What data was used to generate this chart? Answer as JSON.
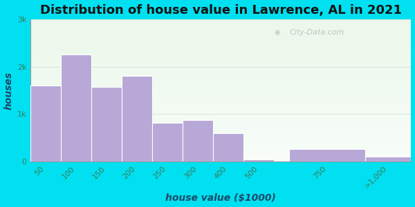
{
  "title": "Distribution of house value in Lawrence, AL in 2021",
  "xlabel": "house value ($1000)",
  "ylabel": "houses",
  "categories": [
    "50",
    "100",
    "150",
    "200",
    "250",
    "300",
    "400",
    "500",
    "750",
    ">1,000"
  ],
  "values": [
    1600,
    2250,
    1580,
    1800,
    820,
    880,
    600,
    50,
    270,
    100
  ],
  "bar_lefts": [
    0,
    1,
    2,
    3,
    4,
    5,
    6,
    7,
    8.5,
    11
  ],
  "bar_widths": [
    1,
    1,
    1,
    1,
    1,
    1,
    1,
    1,
    2.5,
    1.5
  ],
  "bar_color": "#b8a8d8",
  "bar_edge_color": "#ffffff",
  "ylim": [
    0,
    3000
  ],
  "yticks": [
    0,
    1000,
    2000,
    3000
  ],
  "ytick_labels": [
    "0",
    "1k",
    "2k",
    "3k"
  ],
  "bg_outer": "#00e0f0",
  "bg_plot_color": "#e8f5e8",
  "watermark": "City-Data.com",
  "title_fontsize": 13,
  "axis_label_fontsize": 10,
  "tick_fontsize": 8,
  "tick_label_color": "#3a7a5a",
  "axis_label_color": "#1a4a6a",
  "title_color": "#111111"
}
